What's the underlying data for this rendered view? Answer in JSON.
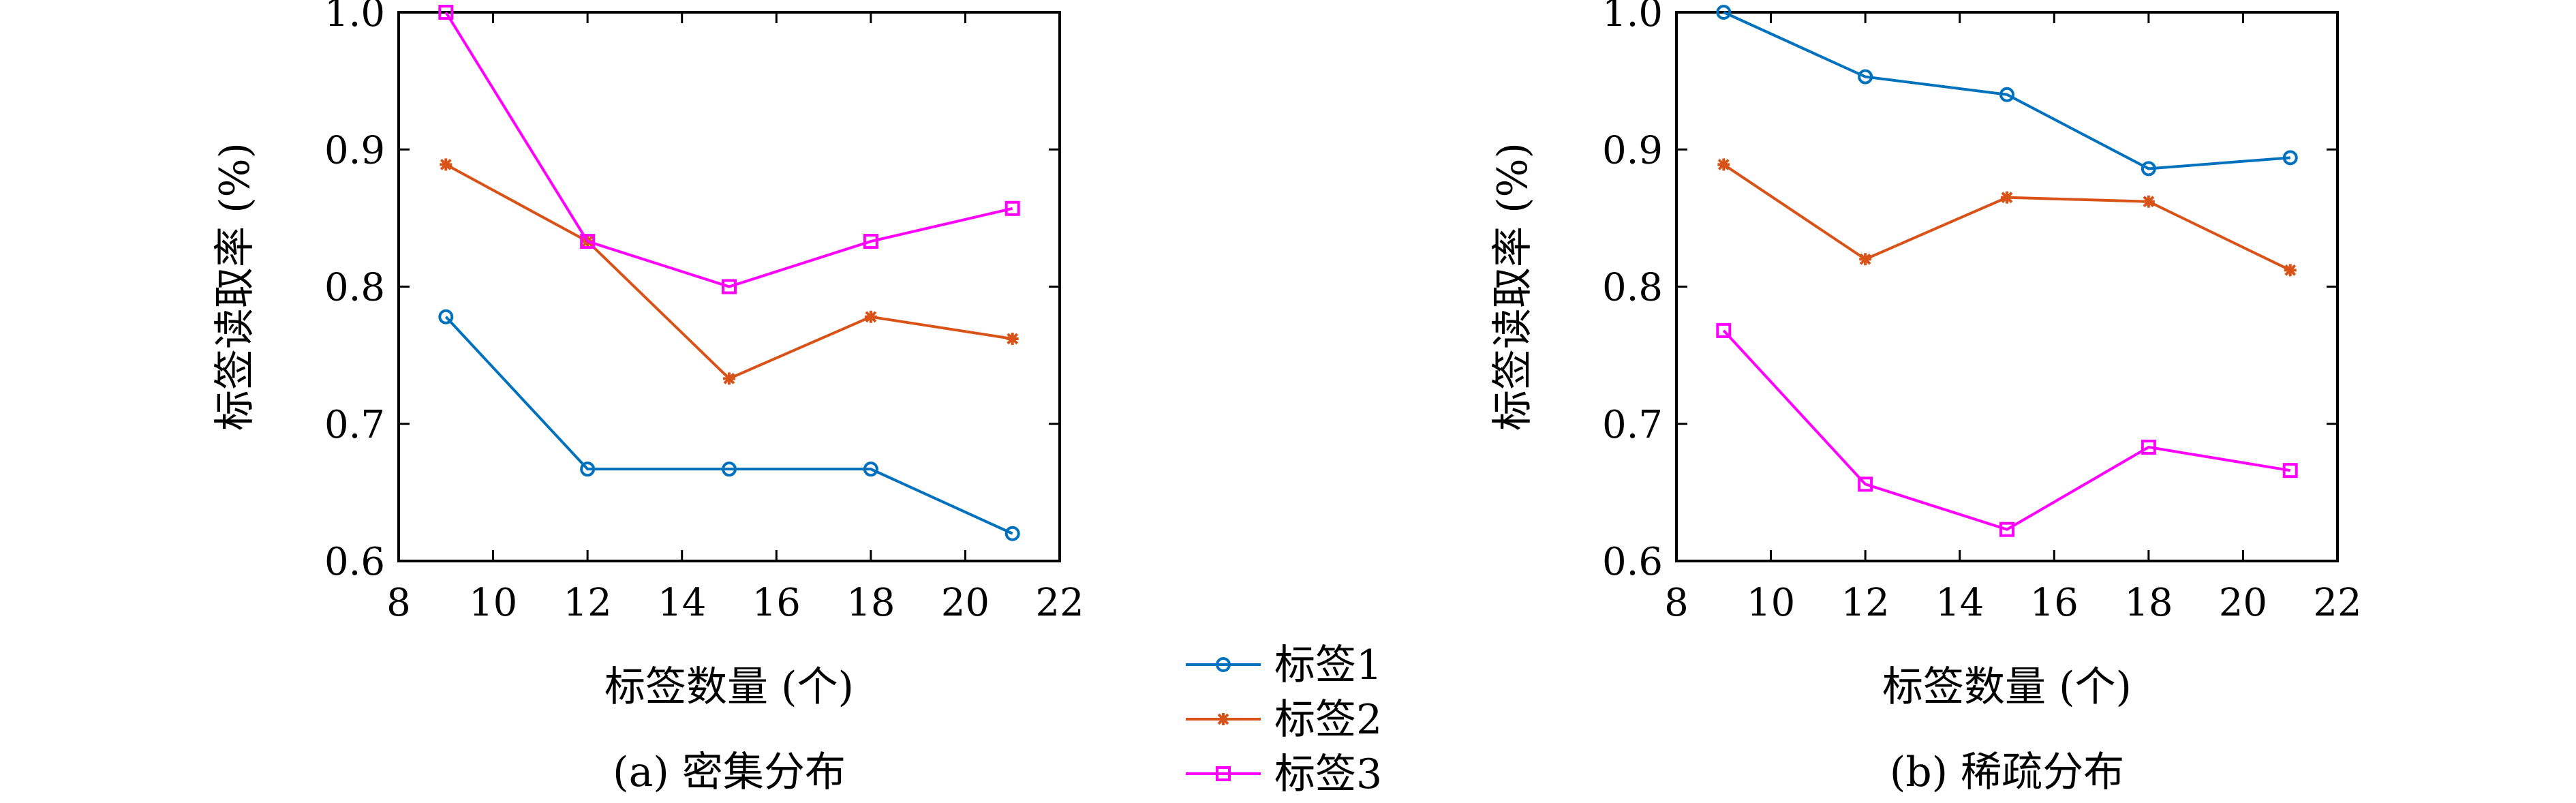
{
  "chart_data": [
    {
      "type": "line",
      "caption": "(a) 密集分布",
      "xlabel": "标签数量 (个)",
      "ylabel": "标签读取率 (%)",
      "xlim": [
        8,
        22
      ],
      "ylim": [
        0.6,
        1.0
      ],
      "xticks": [
        "8",
        "10",
        "12",
        "14",
        "16",
        "18",
        "20",
        "22"
      ],
      "yticks": [
        "0.6",
        "0.7",
        "0.8",
        "0.9",
        "1.0"
      ],
      "x": [
        9,
        12,
        15,
        18,
        21
      ],
      "grid": false,
      "series": [
        {
          "name": "标签1",
          "color": "#0072BD",
          "marker": "circle",
          "values": [
            0.778,
            0.667,
            0.667,
            0.667,
            0.62
          ]
        },
        {
          "name": "标签2",
          "color": "#D95319",
          "marker": "asterisk",
          "values": [
            0.889,
            0.833,
            0.733,
            0.778,
            0.762
          ]
        },
        {
          "name": "标签3",
          "color": "#FF00FF",
          "marker": "square",
          "values": [
            1.0,
            0.833,
            0.8,
            0.833,
            0.857
          ]
        }
      ]
    },
    {
      "type": "line",
      "caption": "(b) 稀疏分布",
      "xlabel": "标签数量 (个)",
      "ylabel": "标签读取率 (%)",
      "xlim": [
        8,
        22
      ],
      "ylim": [
        0.6,
        1.0
      ],
      "xticks": [
        "8",
        "10",
        "12",
        "14",
        "16",
        "18",
        "20",
        "22"
      ],
      "yticks": [
        "0.6",
        "0.7",
        "0.8",
        "0.9",
        "1.0"
      ],
      "x": [
        9,
        12,
        15,
        18,
        21
      ],
      "grid": false,
      "series": [
        {
          "name": "标签1",
          "color": "#0072BD",
          "marker": "circle",
          "values": [
            1.0,
            0.953,
            0.94,
            0.886,
            0.894
          ]
        },
        {
          "name": "标签2",
          "color": "#D95319",
          "marker": "asterisk",
          "values": [
            0.889,
            0.82,
            0.865,
            0.862,
            0.812
          ]
        },
        {
          "name": "标签3",
          "color": "#FF00FF",
          "marker": "square",
          "values": [
            0.768,
            0.656,
            0.623,
            0.683,
            0.666
          ]
        }
      ]
    }
  ],
  "legend": {
    "placement": "bottom-center",
    "entries": [
      {
        "label": "标签1",
        "color": "#0072BD",
        "marker": "circle"
      },
      {
        "label": "标签2",
        "color": "#D95319",
        "marker": "asterisk"
      },
      {
        "label": "标签3",
        "color": "#FF00FF",
        "marker": "square"
      }
    ]
  }
}
